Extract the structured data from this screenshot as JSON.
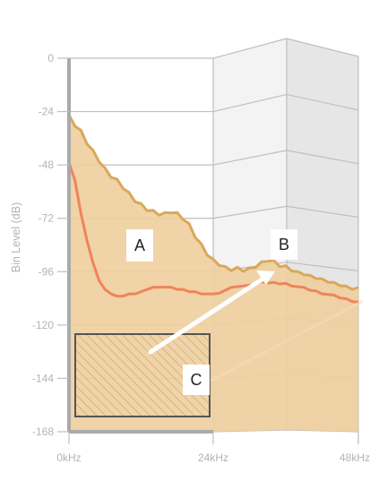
{
  "chart_data": {
    "type": "area",
    "title": "",
    "ylabel": "Bin Level (dB)",
    "xlabel": "",
    "ylim": [
      -168,
      0
    ],
    "yticks": [
      "0",
      "-24",
      "-48",
      "-72",
      "-96",
      "-120",
      "-144",
      "-168"
    ],
    "yticks_values": [
      0,
      -24,
      -48,
      -72,
      -96,
      -120,
      -144,
      -168
    ],
    "x_range_khz": [
      0,
      48
    ],
    "xticks": [
      "0kHz",
      "24kHz",
      "48kHz"
    ],
    "xticks_values": [
      0,
      24,
      48
    ],
    "grid": true,
    "series": [
      {
        "color": "#d9a85a",
        "fill": "#efcf9f",
        "points": [
          [
            0,
            -26
          ],
          [
            1,
            -30
          ],
          [
            2,
            -33
          ],
          [
            3,
            -38
          ],
          [
            4,
            -42
          ],
          [
            5,
            -46
          ],
          [
            6,
            -50
          ],
          [
            7,
            -53
          ],
          [
            8,
            -55
          ],
          [
            9,
            -58
          ],
          [
            10,
            -61
          ],
          [
            11,
            -64
          ],
          [
            12,
            -66
          ],
          [
            13,
            -68
          ],
          [
            14,
            -69
          ],
          [
            15,
            -70
          ],
          [
            16,
            -70
          ],
          [
            17,
            -69
          ],
          [
            18,
            -70
          ],
          [
            19,
            -72
          ],
          [
            20,
            -75
          ],
          [
            21,
            -80
          ],
          [
            22,
            -84
          ],
          [
            23,
            -88
          ],
          [
            24,
            -91
          ],
          [
            25,
            -93
          ],
          [
            26,
            -95
          ],
          [
            27,
            -96
          ],
          [
            28,
            -96
          ],
          [
            29,
            -97
          ],
          [
            30,
            -97
          ],
          [
            31,
            -96
          ],
          [
            32,
            -95
          ],
          [
            33,
            -94
          ],
          [
            34,
            -95
          ],
          [
            35,
            -97
          ],
          [
            36,
            -98
          ],
          [
            37,
            -99
          ],
          [
            38,
            -100
          ],
          [
            39,
            -100
          ],
          [
            40,
            -101
          ],
          [
            41,
            -101
          ],
          [
            42,
            -102
          ],
          [
            43,
            -102
          ],
          [
            44,
            -103
          ],
          [
            45,
            -103
          ],
          [
            46,
            -104
          ],
          [
            47,
            -104
          ],
          [
            48,
            -104
          ]
        ]
      },
      {
        "color": "#f0845a",
        "points": [
          [
            0,
            -47
          ],
          [
            1,
            -55
          ],
          [
            2,
            -70
          ],
          [
            3,
            -82
          ],
          [
            4,
            -92
          ],
          [
            5,
            -100
          ],
          [
            6,
            -104
          ],
          [
            7,
            -106
          ],
          [
            8,
            -107
          ],
          [
            9,
            -107
          ],
          [
            10,
            -106
          ],
          [
            11,
            -106
          ],
          [
            12,
            -105
          ],
          [
            13,
            -104
          ],
          [
            14,
            -103
          ],
          [
            15,
            -103
          ],
          [
            16,
            -103
          ],
          [
            17,
            -103
          ],
          [
            18,
            -104
          ],
          [
            19,
            -104
          ],
          [
            20,
            -105
          ],
          [
            21,
            -105
          ],
          [
            22,
            -106
          ],
          [
            23,
            -106
          ],
          [
            24,
            -106
          ],
          [
            25,
            -106
          ],
          [
            26,
            -105
          ],
          [
            27,
            -104
          ],
          [
            28,
            -104
          ],
          [
            29,
            -104
          ],
          [
            30,
            -104
          ],
          [
            31,
            -104
          ],
          [
            32,
            -103
          ],
          [
            33,
            -104
          ],
          [
            34,
            -104
          ],
          [
            35,
            -105
          ],
          [
            36,
            -105
          ],
          [
            37,
            -106
          ],
          [
            38,
            -106
          ],
          [
            39,
            -106
          ],
          [
            40,
            -107
          ],
          [
            41,
            -107
          ],
          [
            42,
            -108
          ],
          [
            43,
            -108
          ],
          [
            44,
            -108
          ],
          [
            45,
            -109
          ],
          [
            46,
            -109
          ],
          [
            47,
            -110
          ],
          [
            48,
            -110
          ]
        ]
      }
    ],
    "annotations": {
      "A": "A",
      "B": "B",
      "C": "C"
    }
  },
  "colors": {
    "grid": "#bfbfbf",
    "axis": "#aaaaaa",
    "area_fill": "#efcf9f",
    "area_edge": "#d9a85a",
    "line": "#f0845a",
    "panel_light": "#f3f3f3",
    "panel_dark": "#e6e6e6",
    "arrow": "#ffffff",
    "hatch_border": "#555555"
  }
}
